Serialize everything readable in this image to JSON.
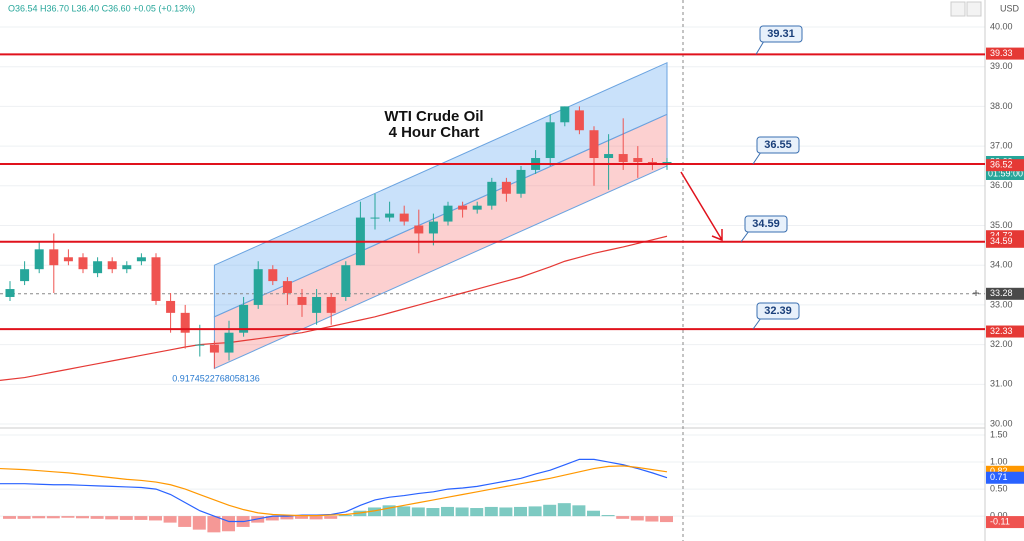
{
  "chart_data": [
    {
      "type": "candlestick",
      "header": "O36.54 H36.70 L36.40 C36.60 +0.05 (+0.13%)",
      "currency": "USD",
      "title": "WTI Crude Oil",
      "subtitle": "4 Hour Chart",
      "low_annotation": "0.9174522768058136",
      "countdown": "01:59:00",
      "up_color": "#26a69a",
      "down_color": "#ef5350",
      "ylim": [
        29.9,
        40.68
      ],
      "yticks": [
        {
          "value": 30,
          "label": "30.00"
        },
        {
          "value": 31,
          "label": "31.00"
        },
        {
          "value": 32,
          "label": "32.00"
        },
        {
          "value": 33,
          "label": "33.00"
        },
        {
          "value": 34,
          "label": "34.00"
        },
        {
          "value": 35,
          "label": "35.00"
        },
        {
          "value": 36,
          "label": "36.00"
        },
        {
          "value": 37,
          "label": "37.00"
        },
        {
          "value": 38,
          "label": "38.00"
        },
        {
          "value": 39,
          "label": "39.00"
        },
        {
          "value": 40,
          "label": "40.00"
        }
      ],
      "open": [
        33.2,
        33.6,
        33.9,
        34.4,
        34.2,
        34.2,
        33.8,
        34.1,
        33.9,
        34.1,
        34.2,
        33.1,
        32.8,
        32.0,
        32.0,
        31.8,
        32.3,
        33.0,
        33.9,
        33.6,
        33.2,
        32.8,
        33.2,
        33.2,
        34.0,
        35.2,
        35.2,
        35.3,
        35.0,
        34.8,
        35.1,
        35.5,
        35.4,
        35.5,
        36.1,
        35.8,
        36.4,
        36.7,
        37.6,
        37.9,
        37.4,
        36.7,
        36.8,
        36.7,
        36.6,
        36.54
      ],
      "high": [
        33.6,
        34.1,
        34.6,
        34.8,
        34.4,
        34.3,
        34.2,
        34.2,
        34.1,
        34.3,
        34.3,
        33.3,
        33.0,
        32.5,
        32.1,
        32.6,
        33.2,
        34.1,
        34.0,
        33.7,
        33.4,
        33.4,
        33.3,
        34.1,
        35.6,
        35.8,
        35.6,
        35.5,
        35.4,
        35.3,
        35.6,
        35.6,
        35.6,
        36.2,
        36.2,
        36.5,
        36.9,
        37.8,
        38.0,
        38.0,
        37.5,
        37.3,
        37.7,
        37.0,
        36.7,
        36.7
      ],
      "low": [
        33.1,
        33.5,
        33.8,
        33.3,
        34.0,
        33.8,
        33.7,
        33.8,
        33.8,
        34.0,
        33.0,
        32.3,
        31.9,
        31.7,
        31.4,
        31.6,
        32.2,
        32.9,
        33.5,
        33.0,
        32.7,
        32.5,
        32.5,
        33.1,
        34.0,
        34.9,
        35.1,
        35.0,
        34.3,
        34.5,
        35.0,
        35.2,
        35.3,
        35.4,
        35.6,
        35.7,
        36.3,
        36.5,
        37.5,
        37.3,
        36.0,
        35.9,
        36.4,
        36.2,
        36.4,
        36.4
      ],
      "close": [
        33.4,
        33.9,
        34.4,
        34.0,
        34.1,
        33.9,
        34.1,
        33.9,
        34.0,
        34.2,
        33.1,
        32.8,
        32.3,
        32.0,
        31.8,
        32.3,
        33.0,
        33.9,
        33.6,
        33.3,
        33.0,
        33.2,
        32.8,
        34.0,
        35.2,
        35.2,
        35.3,
        35.1,
        34.8,
        35.1,
        35.5,
        35.4,
        35.5,
        36.1,
        35.8,
        36.4,
        36.7,
        37.6,
        38.0,
        37.4,
        36.7,
        36.8,
        36.6,
        36.6,
        36.55,
        36.6
      ],
      "moving_average": {
        "color": "#e53935",
        "values": [
          31.1,
          31.17,
          31.24,
          31.31,
          31.38,
          31.45,
          31.52,
          31.59,
          31.66,
          31.73,
          31.8,
          31.87,
          31.94,
          32.0,
          32.03,
          32.05,
          32.1,
          32.15,
          32.2,
          32.25,
          32.3,
          32.38,
          32.46,
          32.54,
          32.62,
          32.7,
          32.8,
          32.9,
          33.0,
          33.1,
          33.2,
          33.3,
          33.4,
          33.5,
          33.6,
          33.7,
          33.83,
          33.96,
          34.1,
          34.2,
          34.3,
          34.38,
          34.46,
          34.55,
          34.64,
          34.73
        ]
      },
      "channel": {
        "upper": [
          34.0,
          39.1
        ],
        "middle": [
          32.7,
          37.8
        ],
        "lower": [
          31.4,
          36.5
        ]
      },
      "levels": [
        39.31,
        36.55,
        34.59,
        32.39
      ],
      "level_color": "#e0121c",
      "price_tags": [
        39.33,
        {
          "value": 36.6,
          "label": "36.60"
        },
        36.52,
        34.73,
        34.59,
        32.33
      ],
      "price_tag_colors": [
        "#e53935",
        "#26a69a",
        "#e53935",
        "#e53935",
        "#e53935",
        "#e53935"
      ],
      "crosshair": 33.28
    },
    {
      "type": "macd",
      "ylim": [
        -0.46,
        1.63
      ],
      "yticks": [
        {
          "value": 0,
          "label": "0.00"
        },
        {
          "value": 0.5,
          "label": "0.50"
        },
        {
          "value": 1,
          "label": "1.00"
        },
        {
          "value": 1.5,
          "label": "1.50"
        }
      ],
      "histogram": [
        -0.05,
        -0.05,
        -0.04,
        -0.04,
        -0.03,
        -0.04,
        -0.05,
        -0.06,
        -0.07,
        -0.07,
        -0.08,
        -0.12,
        -0.2,
        -0.25,
        -0.3,
        -0.28,
        -0.2,
        -0.12,
        -0.08,
        -0.06,
        -0.05,
        -0.06,
        -0.05,
        0.02,
        0.1,
        0.16,
        0.2,
        0.18,
        0.16,
        0.15,
        0.17,
        0.16,
        0.15,
        0.17,
        0.16,
        0.17,
        0.18,
        0.21,
        0.24,
        0.2,
        0.1,
        0.02,
        -0.05,
        -0.08,
        -0.1,
        -0.11
      ],
      "series": [
        {
          "color": "#2962ff",
          "values": [
            0.6,
            0.6,
            0.59,
            0.58,
            0.58,
            0.57,
            0.56,
            0.55,
            0.54,
            0.53,
            0.5,
            0.4,
            0.25,
            0.1,
            0.0,
            -0.1,
            -0.1,
            -0.05,
            0.0,
            0.0,
            0.02,
            0.02,
            0.03,
            0.08,
            0.2,
            0.3,
            0.35,
            0.38,
            0.42,
            0.45,
            0.5,
            0.52,
            0.55,
            0.6,
            0.65,
            0.7,
            0.78,
            0.85,
            0.95,
            1.05,
            1.05,
            1.0,
            0.95,
            0.88,
            0.8,
            0.71
          ]
        },
        {
          "color": "#ff9800",
          "values": [
            0.88,
            0.86,
            0.84,
            0.82,
            0.8,
            0.77,
            0.74,
            0.71,
            0.68,
            0.66,
            0.63,
            0.58,
            0.5,
            0.4,
            0.3,
            0.2,
            0.12,
            0.06,
            0.03,
            0.02,
            0.01,
            0.01,
            0.02,
            0.03,
            0.06,
            0.1,
            0.15,
            0.2,
            0.25,
            0.3,
            0.35,
            0.4,
            0.45,
            0.5,
            0.55,
            0.6,
            0.65,
            0.7,
            0.76,
            0.82,
            0.88,
            0.92,
            0.93,
            0.9,
            0.86,
            0.82
          ]
        }
      ],
      "tags": [
        0.82,
        0.71,
        -0.11
      ],
      "tag_colors": [
        "#ff9800",
        "#2962ff",
        "#ef5350"
      ],
      "histogram_colors": [
        "#26a69a",
        "#ef5350"
      ]
    }
  ]
}
